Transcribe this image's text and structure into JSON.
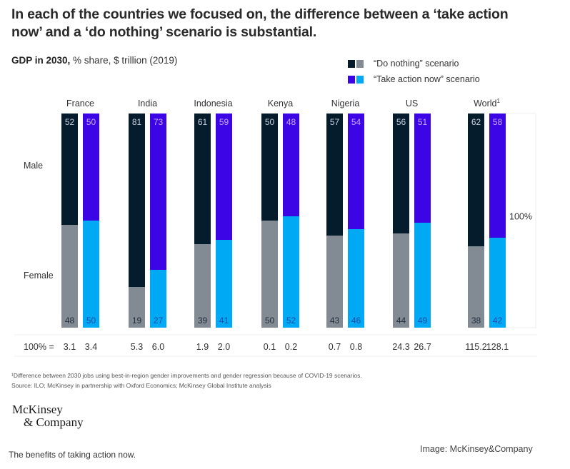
{
  "headline": "In each of the countries we focused on, the difference between a ‘take action now’ and a ‘do nothing’ scenario is substantial.",
  "subtitle_bold": "GDP in 2030,",
  "subtitle_rest": " % share, $ trillion (2019)",
  "legend": [
    {
      "label": "“Do nothing” scenario",
      "colors": [
        "#051c2c",
        "#828b93"
      ]
    },
    {
      "label": "“Take action now” scenario",
      "colors": [
        "#3c05e6",
        "#00a9f4"
      ]
    }
  ],
  "colors": {
    "do_nothing_male": "#051c2c",
    "do_nothing_female": "#828b93",
    "take_action_male": "#3c05e6",
    "take_action_female": "#00a9f4",
    "label_light": "#c8d0e0",
    "label_purple": "#c9a8ff",
    "label_dark": "#1f2d3d",
    "label_blue": "#1a4ea8"
  },
  "chart_data": {
    "type": "bar",
    "stacked": true,
    "title": "GDP in 2030, % share, $ trillion (2019)",
    "row_labels": [
      "Male",
      "Female"
    ],
    "total_row_label": "100% =",
    "scale_label": "100%",
    "ylim": [
      0,
      100
    ],
    "categories": [
      "France",
      "India",
      "Indonesia",
      "Kenya",
      "Nigeria",
      "US",
      "World"
    ],
    "category_superscripts": [
      "",
      "",
      "",
      "",
      "",
      "",
      "1"
    ],
    "series": [
      {
        "name": "Do nothing",
        "male": [
          52,
          81,
          61,
          50,
          57,
          56,
          62
        ],
        "female": [
          48,
          19,
          39,
          50,
          43,
          44,
          38
        ],
        "totals": [
          "3.1",
          "5.3",
          "1.9",
          "0.1",
          "0.7",
          "24.3",
          "115.2"
        ]
      },
      {
        "name": "Take action now",
        "male": [
          50,
          73,
          59,
          48,
          54,
          51,
          58
        ],
        "female": [
          50,
          27,
          41,
          52,
          46,
          49,
          42
        ],
        "totals": [
          "3.4",
          "6.0",
          "2.0",
          "0.2",
          "0.8",
          "26.7",
          "128.1"
        ]
      }
    ]
  },
  "footnote_1": "¹Difference between 2030 jobs using best-in-region gender improvements and gender regression because of COVID-19 scenarios.",
  "source": "Source: ILO; McKinsey in partnership with Oxford Economics; McKinsey Global Institute analysis",
  "logo_line1": "McKinsey",
  "logo_line2": "& Company",
  "caption": "The benefits of taking action now.",
  "credit": "Image: McKinsey&Company"
}
